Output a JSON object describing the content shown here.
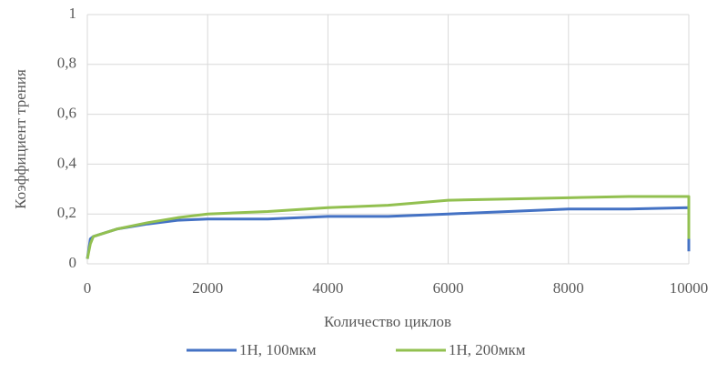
{
  "chart_data": {
    "type": "line",
    "xlabel": "Количество циклов",
    "ylabel": "Коэффициент трения",
    "x": [
      0,
      50,
      100,
      500,
      1000,
      1500,
      2000,
      3000,
      4000,
      5000,
      6000,
      7000,
      8000,
      9000,
      10000,
      10000
    ],
    "series": [
      {
        "name": "1Н, 100мкм",
        "color": "#4472c4",
        "values": [
          0.02,
          0.1,
          0.11,
          0.14,
          0.16,
          0.175,
          0.18,
          0.18,
          0.19,
          0.19,
          0.2,
          0.21,
          0.22,
          0.22,
          0.225,
          0.05
        ]
      },
      {
        "name": "1Н, 200мкм",
        "color": "#92c050",
        "values": [
          0.02,
          0.08,
          0.11,
          0.14,
          0.165,
          0.185,
          0.2,
          0.21,
          0.225,
          0.235,
          0.255,
          0.26,
          0.265,
          0.27,
          0.27,
          0.1
        ]
      }
    ],
    "xlim": [
      0,
      10000
    ],
    "xticks": [
      0,
      2000,
      4000,
      6000,
      8000,
      10000
    ],
    "ylim": [
      0,
      1
    ],
    "yticks": [
      0,
      {
        "value": 0.2,
        "label": "0,2"
      },
      {
        "value": 0.4,
        "label": "0,4"
      },
      {
        "value": 0.6,
        "label": "0,6"
      },
      {
        "value": 0.8,
        "label": "0,8"
      },
      1
    ],
    "grid": true,
    "legend": "bottom"
  }
}
